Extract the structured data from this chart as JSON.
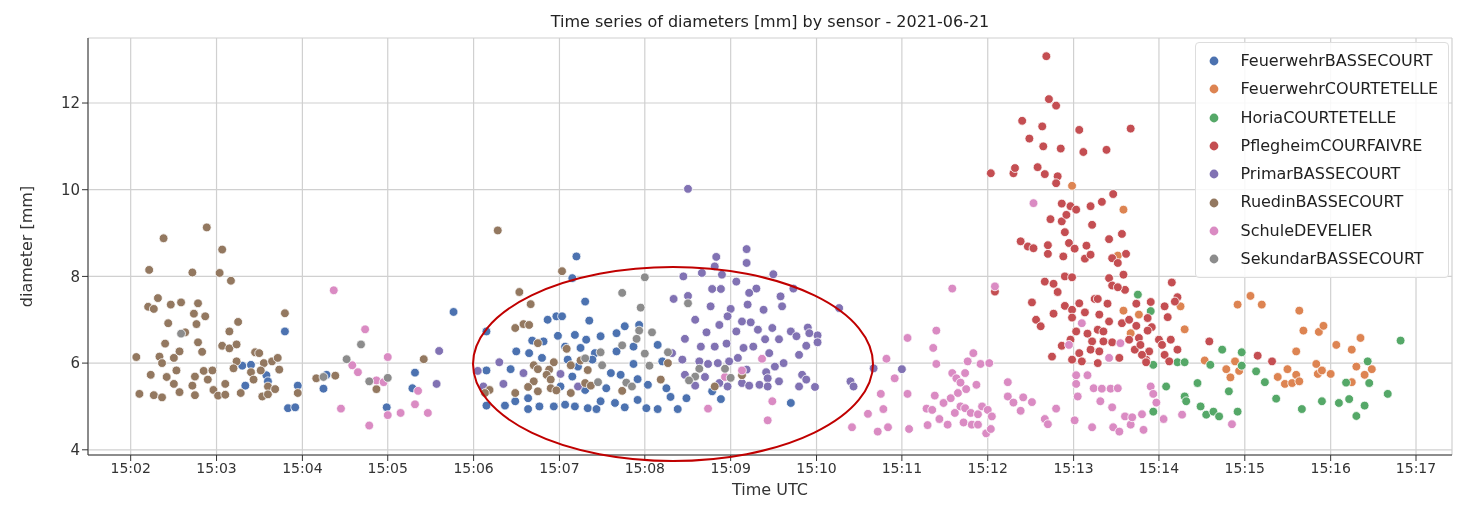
{
  "chart_data": {
    "type": "scatter",
    "title": "Time series of diameters [mm] by sensor - 2021-06-21",
    "xlabel": "Time UTC",
    "ylabel": "diameter [mm]",
    "xlim": [
      15.025,
      15.2903
    ],
    "ylim": [
      3.88,
      13.5
    ],
    "xticks": [
      {
        "value": 15.0333,
        "label": "15:02"
      },
      {
        "value": 15.05,
        "label": "15:03"
      },
      {
        "value": 15.0667,
        "label": "15:04"
      },
      {
        "value": 15.0833,
        "label": "15:05"
      },
      {
        "value": 15.1,
        "label": "15:06"
      },
      {
        "value": 15.1167,
        "label": "15:07"
      },
      {
        "value": 15.1333,
        "label": "15:08"
      },
      {
        "value": 15.15,
        "label": "15:09"
      },
      {
        "value": 15.1667,
        "label": "15:10"
      },
      {
        "value": 15.1833,
        "label": "15:11"
      },
      {
        "value": 15.2,
        "label": "15:12"
      },
      {
        "value": 15.2167,
        "label": "15:13"
      },
      {
        "value": 15.2333,
        "label": "15:14"
      },
      {
        "value": 15.25,
        "label": "15:15"
      },
      {
        "value": 15.2667,
        "label": "15:16"
      },
      {
        "value": 15.2833,
        "label": "15:17"
      }
    ],
    "yticks": [
      4,
      6,
      8,
      10,
      12
    ],
    "grid": true,
    "legend": "top right",
    "marker": "circle",
    "series": [
      {
        "name": "FeuerwehrBASSECOURT",
        "color": "#4c72b0",
        "x": [
          15.055,
          15.0567,
          15.0597,
          15.06,
          15.0556,
          15.0633,
          15.0658,
          15.0639,
          15.0653,
          15.0708,
          15.0714,
          15.0831,
          15.0886,
          15.0881,
          15.0961,
          15.1025,
          15.1025,
          15.1025,
          15.1061,
          15.1072,
          15.1083,
          15.1108,
          15.1114,
          15.1136,
          15.1144,
          15.1161,
          15.1172,
          15.12,
          15.1192,
          15.1217,
          15.1225,
          15.1294,
          15.1278,
          15.1247,
          15.1219,
          15.1197,
          15.1164,
          15.1178,
          15.1208,
          15.1236,
          15.1278,
          15.1311,
          15.1358,
          15.1322,
          15.1133,
          15.1183,
          15.1203,
          15.1231,
          15.1267,
          15.1311,
          15.1367,
          15.1286,
          15.1319,
          15.1339,
          15.1375,
          15.1169,
          15.1192,
          15.1217,
          15.1258,
          15.1106,
          15.1081,
          15.1106,
          15.1128,
          15.1156,
          15.1178,
          15.1197,
          15.1222,
          15.1239,
          15.1247,
          15.1275,
          15.1294,
          15.1319,
          15.1336,
          15.1358,
          15.1383,
          15.1397,
          15.1414,
          15.1464,
          15.1481,
          15.1617
        ],
        "values": [
          5.94,
          5.96,
          5.72,
          5.58,
          5.48,
          6.73,
          5.48,
          4.96,
          4.98,
          5.41,
          5.73,
          4.98,
          5.78,
          5.42,
          7.18,
          6.73,
          5.83,
          5.02,
          5.02,
          5.86,
          6.27,
          6.23,
          6.52,
          6.5,
          7.0,
          7.08,
          7.08,
          8.46,
          7.96,
          7.42,
          6.98,
          6.85,
          6.69,
          6.62,
          6.54,
          6.65,
          6.63,
          6.38,
          6.35,
          6.23,
          6.27,
          6.38,
          6.42,
          6.88,
          6.12,
          6.08,
          5.92,
          6.08,
          5.77,
          5.98,
          6.04,
          5.73,
          5.63,
          5.5,
          5.42,
          5.46,
          5.69,
          5.38,
          5.42,
          5.19,
          5.12,
          4.94,
          5.0,
          5.0,
          5.04,
          5.0,
          4.96,
          4.94,
          5.12,
          5.08,
          4.98,
          5.15,
          4.96,
          4.94,
          5.22,
          4.94,
          5.19,
          5.35,
          5.17,
          5.08
        ]
      },
      {
        "name": "FeuerwehrCOURTETELLE",
        "color": "#dd8452",
        "x": [
          15.2164,
          15.2264,
          15.2253,
          15.2264,
          15.2294,
          15.2278,
          15.2375,
          15.2383,
          15.2422,
          15.2464,
          15.2472,
          15.2481,
          15.2489,
          15.2486,
          15.2511,
          15.2533,
          15.2564,
          15.2578,
          15.2583,
          15.2592,
          15.26,
          15.2606,
          15.26,
          15.2606,
          15.2614,
          15.2644,
          15.2653,
          15.2639,
          15.2642,
          15.265,
          15.2667,
          15.2678,
          15.2708,
          15.2708,
          15.2717,
          15.2725,
          15.2733,
          15.2747
        ],
        "values": [
          10.09,
          9.54,
          8.48,
          7.21,
          7.12,
          6.69,
          7.31,
          6.78,
          6.06,
          5.86,
          5.67,
          6.04,
          5.82,
          7.35,
          7.55,
          7.35,
          5.68,
          5.52,
          5.86,
          5.54,
          5.73,
          5.58,
          6.27,
          7.21,
          6.75,
          6.72,
          6.86,
          5.98,
          5.75,
          5.83,
          5.75,
          6.42,
          5.56,
          6.31,
          5.92,
          6.58,
          5.73,
          5.86
        ]
      },
      {
        "name": "HoriaCOURTETELLE",
        "color": "#55a868",
        "x": [
          15.2292,
          15.2317,
          15.2322,
          15.2369,
          15.2383,
          15.2347,
          15.2322,
          15.2383,
          15.2386,
          15.2408,
          15.2414,
          15.2425,
          15.2439,
          15.245,
          15.2456,
          15.2433,
          15.2469,
          15.2486,
          15.2494,
          15.2494,
          15.2522,
          15.2539,
          15.2561,
          15.2611,
          15.265,
          15.2683,
          15.2697,
          15.2703,
          15.2717,
          15.2733,
          15.2739,
          15.2742,
          15.2778,
          15.2803
        ],
        "values": [
          7.58,
          7.2,
          5.96,
          6.02,
          6.02,
          5.46,
          4.88,
          5.23,
          5.12,
          5.54,
          5.0,
          4.81,
          4.88,
          4.77,
          6.31,
          5.96,
          5.35,
          4.88,
          6.25,
          5.94,
          5.81,
          5.56,
          5.18,
          4.94,
          5.12,
          5.08,
          5.55,
          5.17,
          4.78,
          5.02,
          6.04,
          5.54,
          5.29,
          6.52
        ]
      },
      {
        "name": "PflegheimCOURFAIVRE",
        "color": "#c44e52",
        "x": [
          15.2114,
          15.2119,
          15.2133,
          15.2067,
          15.2106,
          15.2178,
          15.2081,
          15.2108,
          15.2142,
          15.2186,
          15.2231,
          15.2278,
          15.2006,
          15.205,
          15.2053,
          15.2097,
          15.2111,
          15.2136,
          15.2133,
          15.2144,
          15.2161,
          15.2172,
          15.22,
          15.2222,
          15.2244,
          15.2122,
          15.2144,
          15.2153,
          15.2203,
          15.215,
          15.2064,
          15.2078,
          15.2089,
          15.2117,
          15.2117,
          15.2147,
          15.2158,
          15.2169,
          15.2192,
          15.2189,
          15.22,
          15.2236,
          15.2261,
          15.2269,
          15.2242,
          15.2253,
          15.2111,
          15.2128,
          15.2136,
          15.215,
          15.2164,
          15.2264,
          15.2236,
          15.2242,
          15.2267,
          15.2253,
          15.2014,
          15.2086,
          15.2094,
          15.2103,
          15.2128,
          15.215,
          15.2164,
          15.2178,
          15.2189,
          15.2208,
          15.2214,
          15.2217,
          15.2233,
          15.2236,
          15.2261,
          15.2275,
          15.2289,
          15.2164,
          15.2172,
          15.2194,
          15.2214,
          15.2225,
          15.2242,
          15.2203,
          15.2161,
          15.2144,
          15.2125,
          15.2164,
          15.2178,
          15.2183,
          15.22,
          15.2217,
          15.2214,
          15.2225,
          15.2256,
          15.2275,
          15.2286,
          15.2294,
          15.2297,
          15.2308,
          15.2314,
          15.2358,
          15.2369,
          15.2364,
          15.2344,
          15.235,
          15.2317,
          15.2311,
          15.2319,
          15.2311,
          15.2289,
          15.2333,
          15.2356,
          15.2339,
          15.2369,
          15.2344,
          15.2353,
          15.23,
          15.2308,
          15.2431,
          15.2525,
          15.2553
        ],
        "values": [
          13.08,
          12.09,
          11.94,
          11.59,
          11.46,
          11.38,
          11.18,
          11.0,
          10.95,
          10.87,
          10.92,
          11.41,
          10.38,
          10.38,
          10.5,
          10.52,
          10.36,
          10.31,
          10.15,
          9.68,
          9.62,
          9.54,
          9.62,
          9.72,
          9.9,
          9.32,
          9.27,
          9.42,
          9.19,
          9.02,
          8.81,
          8.69,
          8.65,
          8.72,
          8.52,
          8.46,
          8.77,
          8.64,
          8.71,
          8.41,
          8.5,
          8.86,
          8.98,
          8.52,
          8.42,
          8.31,
          7.88,
          7.83,
          7.64,
          8.0,
          7.98,
          8.04,
          7.96,
          7.79,
          7.69,
          7.75,
          7.65,
          7.4,
          7.0,
          6.85,
          7.14,
          7.32,
          7.23,
          7.38,
          7.17,
          7.48,
          7.48,
          7.12,
          7.37,
          6.96,
          6.92,
          7.0,
          7.37,
          7.05,
          6.73,
          6.68,
          6.77,
          6.73,
          6.48,
          6.5,
          6.54,
          6.4,
          6.15,
          6.08,
          6.23,
          6.04,
          6.31,
          6.27,
          6.0,
          6.5,
          6.12,
          6.54,
          6.31,
          6.58,
          6.42,
          6.08,
          6.27,
          7.86,
          7.52,
          7.42,
          7.31,
          7.06,
          7.41,
          7.04,
          6.83,
          6.75,
          6.86,
          6.54,
          6.54,
          6.42,
          6.31,
          6.19,
          6.04,
          6.19,
          6.02,
          6.5,
          6.17,
          6.04
        ]
      },
      {
        "name": "PrimarBASSECOURT",
        "color": "#8172b3",
        "x": [
          15.0933,
          15.0928,
          15.1008,
          15.1019,
          15.105,
          15.1058,
          15.1097,
          15.1169,
          15.1203,
          15.1417,
          15.1408,
          15.1444,
          15.1472,
          15.1469,
          15.1483,
          15.1531,
          15.1531,
          15.1511,
          15.1583,
          15.1622,
          15.1597,
          15.1564,
          15.16,
          15.155,
          15.1536,
          15.1533,
          15.15,
          15.1464,
          15.1481,
          15.1461,
          15.1389,
          15.1417,
          15.1711,
          15.1431,
          15.1494,
          15.1522,
          15.1539,
          15.1478,
          15.1553,
          15.1581,
          15.1617,
          15.165,
          15.1669,
          15.1653,
          15.1628,
          15.1594,
          15.1567,
          15.1511,
          15.1453,
          15.1411,
          15.1442,
          15.1469,
          15.1492,
          15.1525,
          15.1544,
          15.1575,
          15.1647,
          15.1669,
          15.1633,
          15.1386,
          15.1406,
          15.1439,
          15.1456,
          15.1475,
          15.1497,
          15.1514,
          15.1531,
          15.1603,
          15.1586,
          15.1569,
          15.1572,
          15.1556,
          15.1522,
          15.1478,
          15.145,
          15.1431,
          15.1411,
          15.1594,
          15.1639,
          15.1647,
          15.1664,
          15.1633,
          15.1536,
          15.1572,
          15.1733,
          15.1739,
          15.1494,
          15.1778,
          15.1833
        ],
        "values": [
          6.28,
          5.52,
          5.82,
          5.46,
          6.02,
          5.52,
          5.77,
          5.75,
          5.46,
          10.02,
          8.0,
          8.08,
          8.45,
          8.23,
          8.04,
          8.63,
          8.31,
          7.88,
          8.05,
          7.72,
          7.54,
          7.23,
          7.31,
          7.72,
          7.62,
          7.35,
          7.25,
          7.71,
          7.71,
          7.31,
          7.48,
          7.55,
          7.27,
          7.0,
          7.08,
          6.96,
          6.94,
          6.88,
          6.77,
          6.81,
          6.73,
          6.82,
          6.64,
          6.69,
          6.62,
          6.55,
          6.55,
          6.73,
          6.71,
          6.56,
          6.38,
          6.38,
          6.45,
          6.35,
          6.38,
          6.23,
          6.4,
          6.48,
          6.19,
          6.23,
          6.08,
          6.04,
          5.98,
          6.0,
          6.04,
          6.12,
          5.85,
          6.0,
          5.92,
          5.79,
          5.65,
          5.5,
          5.54,
          5.54,
          5.68,
          5.48,
          5.73,
          5.58,
          5.73,
          5.62,
          5.45,
          5.46,
          5.48,
          5.46,
          5.58,
          5.46,
          5.46,
          5.88,
          5.86
        ]
      },
      {
        "name": "RuedinBASSECOURT",
        "color": "#937860",
        "x": [
          15.0344,
          15.0369,
          15.0397,
          15.0481,
          15.0511,
          15.0453,
          15.0506,
          15.0528,
          15.0367,
          15.0386,
          15.0378,
          15.0411,
          15.0431,
          15.0464,
          15.0456,
          15.0478,
          15.0406,
          15.0461,
          15.0542,
          15.0525,
          15.0439,
          15.04,
          15.0464,
          15.0511,
          15.0525,
          15.0539,
          15.0428,
          15.0472,
          15.0389,
          15.0394,
          15.0417,
          15.0575,
          15.0583,
          15.0539,
          15.0592,
          15.0608,
          15.0619,
          15.0372,
          15.0422,
          15.0403,
          15.0458,
          15.0475,
          15.0492,
          15.0533,
          15.0567,
          15.0586,
          15.0622,
          15.0417,
          15.0453,
          15.0483,
          15.0517,
          15.0572,
          15.06,
          15.0428,
          15.035,
          15.0378,
          15.0394,
          15.0458,
          15.0494,
          15.0503,
          15.0517,
          15.0547,
          15.0589,
          15.06,
          15.0614,
          15.0633,
          15.0658,
          15.0694,
          15.0731,
          15.0811,
          15.0903,
          15.1047,
          15.1172,
          15.1089,
          15.1111,
          15.1081,
          15.1097,
          15.1108,
          15.1125,
          15.1181,
          15.1156,
          15.1189,
          15.1208,
          15.1222,
          15.1117,
          15.1125,
          15.1147,
          15.1142,
          15.115,
          15.1117,
          15.1106,
          15.1031,
          15.1022,
          15.1081,
          15.1125,
          15.115,
          15.1161,
          15.1189,
          15.1217,
          15.1228,
          15.1289,
          15.1364,
          15.1378,
          15.1469,
          15.1522
        ],
        "values": [
          6.14,
          8.15,
          8.88,
          9.13,
          8.62,
          8.09,
          8.08,
          7.9,
          7.3,
          7.5,
          7.25,
          7.35,
          7.4,
          7.38,
          7.14,
          7.08,
          6.92,
          6.9,
          6.95,
          6.73,
          6.71,
          6.45,
          6.48,
          6.4,
          6.34,
          6.43,
          6.27,
          6.26,
          6.15,
          6.0,
          6.12,
          6.25,
          6.23,
          6.04,
          6.0,
          6.04,
          6.12,
          5.73,
          5.83,
          5.68,
          5.69,
          5.82,
          5.83,
          5.88,
          5.79,
          5.83,
          5.85,
          5.52,
          5.48,
          5.62,
          5.52,
          5.62,
          5.46,
          5.33,
          5.29,
          5.26,
          5.21,
          5.26,
          5.38,
          5.25,
          5.27,
          5.31,
          5.23,
          5.28,
          5.4,
          7.15,
          5.31,
          5.65,
          5.71,
          5.4,
          6.09,
          9.06,
          8.12,
          7.64,
          7.36,
          6.81,
          6.9,
          6.88,
          6.46,
          6.33,
          6.02,
          5.95,
          6.06,
          5.84,
          5.95,
          5.86,
          5.85,
          5.73,
          5.62,
          5.58,
          5.45,
          5.38,
          5.31,
          5.31,
          5.35,
          5.42,
          5.37,
          5.31,
          5.54,
          5.48,
          5.36,
          5.62,
          6.0,
          5.46,
          5.72
        ]
      },
      {
        "name": "SchuleDEVELIER",
        "color": "#da8bc3",
        "x": [
          15.0728,
          15.0789,
          15.0764,
          15.0775,
          15.0811,
          15.0825,
          15.0833,
          15.0892,
          15.0886,
          15.0742,
          15.0797,
          15.0833,
          15.0858,
          15.0911,
          15.1456,
          15.1489,
          15.1522,
          15.1561,
          15.1581,
          15.1572,
          15.1736,
          15.1767,
          15.1786,
          15.1806,
          15.1792,
          15.1797,
          15.1803,
          15.1819,
          15.1844,
          15.1844,
          15.1847,
          15.1883,
          15.1881,
          15.1892,
          15.1897,
          15.1894,
          15.19,
          15.19,
          15.1931,
          15.1906,
          15.1922,
          15.1914,
          15.1931,
          15.1939,
          15.1947,
          15.1956,
          15.1958,
          15.1942,
          15.1928,
          15.1947,
          15.1936,
          15.1956,
          15.1967,
          15.1953,
          15.1969,
          15.1981,
          15.1981,
          15.1989,
          15.2,
          15.2008,
          15.1997,
          15.2006,
          15.1961,
          15.1972,
          15.1978,
          15.1986,
          15.2003,
          15.2014,
          15.2039,
          15.2039,
          15.205,
          15.2064,
          15.2069,
          15.2086,
          15.2089,
          15.2111,
          15.2117,
          15.2133,
          15.2158,
          15.2169,
          15.2172,
          15.2172,
          15.2175,
          15.2194,
          15.2183,
          15.2203,
          15.2206,
          15.2219,
          15.2222,
          15.2239,
          15.2253,
          15.2242,
          15.2244,
          15.2256,
          15.2267,
          15.2278,
          15.2281,
          15.2258,
          15.2236,
          15.23,
          15.2303,
          15.2317,
          15.2322,
          15.2328,
          15.2342,
          15.2378,
          15.2475
        ],
        "values": [
          7.68,
          6.78,
          5.95,
          5.79,
          5.6,
          5.56,
          6.14,
          5.36,
          5.05,
          4.95,
          4.56,
          4.8,
          4.85,
          4.85,
          4.95,
          5.68,
          5.83,
          6.1,
          5.12,
          4.68,
          4.52,
          4.83,
          4.42,
          4.52,
          5.29,
          4.94,
          6.1,
          5.65,
          6.58,
          5.29,
          4.48,
          4.57,
          4.95,
          4.92,
          5.25,
          6.35,
          6.75,
          5.98,
          7.72,
          4.71,
          4.58,
          5.08,
          5.77,
          5.65,
          5.55,
          5.77,
          5.4,
          5.31,
          5.19,
          5.0,
          4.85,
          4.96,
          4.85,
          4.63,
          4.58,
          4.58,
          4.82,
          5.0,
          4.92,
          4.77,
          4.38,
          4.48,
          6.04,
          6.23,
          5.5,
          5.98,
          6.0,
          7.77,
          5.56,
          5.23,
          5.09,
          4.9,
          5.21,
          5.1,
          9.69,
          4.71,
          4.59,
          4.95,
          6.42,
          4.68,
          5.72,
          5.52,
          5.23,
          5.72,
          6.92,
          4.52,
          5.42,
          5.12,
          5.41,
          5.41,
          5.42,
          4.98,
          4.52,
          4.42,
          4.77,
          4.58,
          4.75,
          6.46,
          6.12,
          4.82,
          4.46,
          5.46,
          5.29,
          5.09,
          4.71,
          4.81,
          4.59
        ]
      },
      {
        "name": "SekundarBASSECOURT",
        "color": "#8c8c8c",
        "x": [
          15.0431,
          15.0708,
          15.0753,
          15.0781,
          15.0797,
          15.0833,
          15.1333,
          15.1289,
          15.1325,
          15.1322,
          15.1317,
          15.1347,
          15.1289,
          15.1247,
          15.1217,
          15.125,
          15.1333,
          15.1342,
          15.1378,
          15.1417,
          15.1439,
          15.1431,
          15.1419,
          15.1489,
          15.15,
          15.1242,
          15.1297,
          15.1308
        ],
        "values": [
          6.68,
          5.68,
          6.09,
          6.43,
          5.58,
          5.66,
          7.98,
          7.62,
          7.28,
          6.75,
          6.56,
          6.71,
          6.41,
          6.25,
          6.11,
          5.95,
          6.22,
          5.94,
          6.25,
          7.38,
          5.87,
          5.69,
          5.6,
          5.87,
          5.66,
          5.56,
          5.55,
          5.46
        ]
      }
    ]
  }
}
